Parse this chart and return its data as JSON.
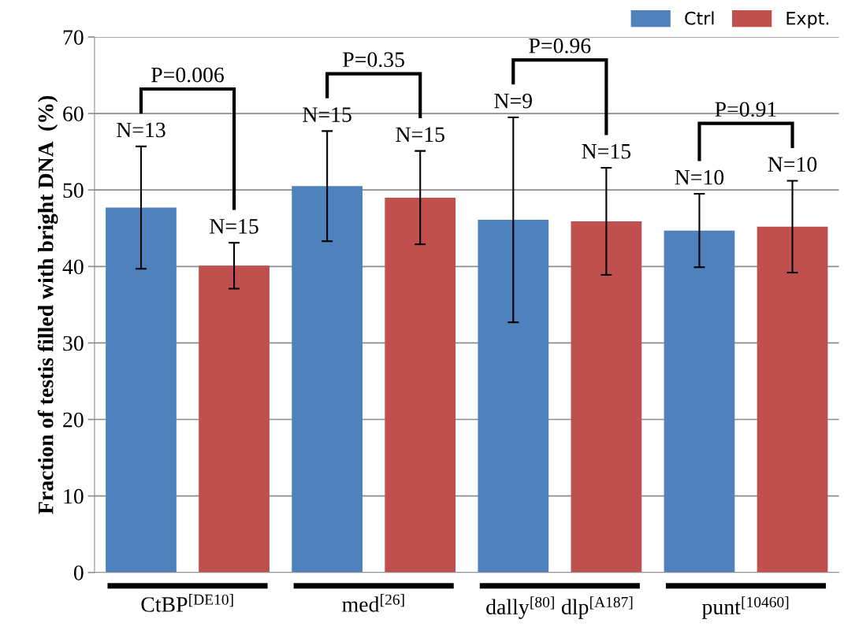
{
  "chart_data": {
    "type": "bar",
    "ylabel": "Fraction of testis filled with bright DNA  (%)",
    "categories": [
      "CtBP$^{[DE10]}$",
      "med$^{[26]}$",
      "dally$^{[80]}$ dlp$^{[A187]}$",
      "punt$^{[10460]}$"
    ],
    "series": [
      {
        "name": "Ctrl",
        "color": "#4f81bd",
        "values": [
          47.7,
          50.5,
          46.1,
          44.7
        ],
        "errors": [
          8.0,
          7.2,
          13.4,
          4.8
        ]
      },
      {
        "name": "Expt.",
        "color": "#c0504d",
        "values": [
          40.1,
          49.0,
          45.9,
          45.2
        ],
        "errors": [
          3.0,
          6.1,
          7.0,
          6.0
        ]
      }
    ],
    "ylim": [
      0,
      70
    ],
    "yticks": [
      0,
      10,
      20,
      30,
      40,
      50,
      60,
      70
    ],
    "grid": "y",
    "legend": "top right",
    "annotations": [
      "N=13",
      "N=15",
      "P=0.006",
      "N=15",
      "N=15",
      "P=0.35",
      "N=9",
      "N=15",
      "P=0.96",
      "N=10",
      "N=10",
      "P=0.91"
    ]
  }
}
